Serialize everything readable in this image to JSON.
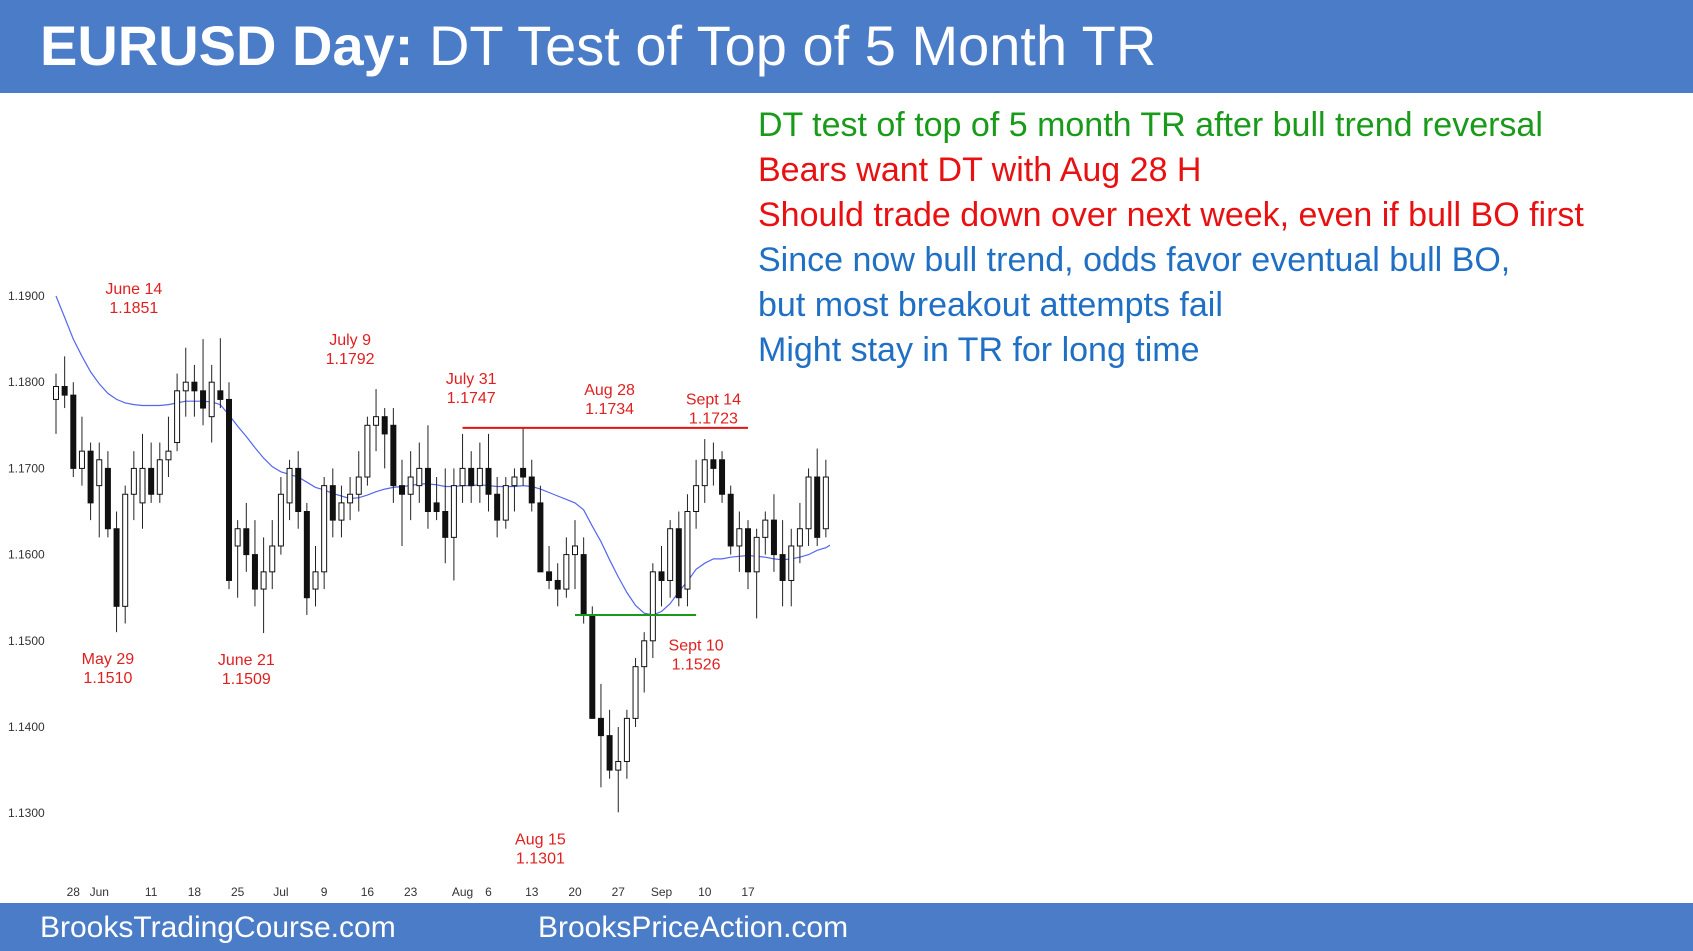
{
  "header": {
    "title_bold": "EURUSD Day:",
    "title_rest": "DT Test of Top of 5 Month TR"
  },
  "footer": {
    "left": "BrooksTradingCourse.com",
    "right": "BrooksPriceAction.com"
  },
  "notes": [
    {
      "text": "DT test of top of 5 month TR after bull trend reversal",
      "color": "#1a9a1a"
    },
    {
      "text": "Bears want DT with Aug 28 H",
      "color": "#e81010"
    },
    {
      "text": "Should trade down over next week, even if bull BO first",
      "color": "#e81010"
    },
    {
      "text": "Since now bull trend, odds favor eventual bull BO,",
      "color": "#1f6fc4"
    },
    {
      "text": "but most breakout attempts fail",
      "color": "#1f6fc4"
    },
    {
      "text": "Might stay in TR for long time",
      "color": "#1f6fc4"
    }
  ],
  "chart_data": {
    "type": "candlestick",
    "y_ticks": [
      "1.1300",
      "1.1400",
      "1.1500",
      "1.1600",
      "1.1700",
      "1.1800",
      "1.1900"
    ],
    "ylim": [
      1.125,
      1.195
    ],
    "x_ticks": [
      {
        "label": "28",
        "bar": 2
      },
      {
        "label": "Jun",
        "bar": 5
      },
      {
        "label": "11",
        "bar": 11
      },
      {
        "label": "18",
        "bar": 16
      },
      {
        "label": "25",
        "bar": 21
      },
      {
        "label": "Jul",
        "bar": 26
      },
      {
        "label": "9",
        "bar": 31
      },
      {
        "label": "16",
        "bar": 36
      },
      {
        "label": "23",
        "bar": 41
      },
      {
        "label": "Aug",
        "bar": 47
      },
      {
        "label": "6",
        "bar": 50
      },
      {
        "label": "13",
        "bar": 55
      },
      {
        "label": "20",
        "bar": 60
      },
      {
        "label": "27",
        "bar": 65
      },
      {
        "label": "Sep",
        "bar": 70
      },
      {
        "label": "10",
        "bar": 75
      },
      {
        "label": "17",
        "bar": 80
      }
    ],
    "annotations": [
      {
        "bar": 9,
        "price": 1.1851,
        "lines": [
          "June 14",
          "1.1851"
        ],
        "pos": "above"
      },
      {
        "bar": 6,
        "price": 1.151,
        "lines": [
          "May 29",
          "1.1510"
        ],
        "pos": "below"
      },
      {
        "bar": 22,
        "price": 1.1509,
        "lines": [
          "June 21",
          "1.1509"
        ],
        "pos": "below"
      },
      {
        "bar": 34,
        "price": 1.1792,
        "lines": [
          "July 9",
          "1.1792"
        ],
        "pos": "above"
      },
      {
        "bar": 48,
        "price": 1.1747,
        "lines": [
          "July 31",
          "1.1747"
        ],
        "pos": "above"
      },
      {
        "bar": 56,
        "price": 1.1301,
        "lines": [
          "Aug 15",
          "1.1301"
        ],
        "pos": "below"
      },
      {
        "bar": 64,
        "price": 1.1734,
        "lines": [
          "Aug 28",
          "1.1734"
        ],
        "pos": "above"
      },
      {
        "bar": 74,
        "price": 1.1526,
        "lines": [
          "Sept 10",
          "1.1526"
        ],
        "pos": "below"
      },
      {
        "bar": 76,
        "price": 1.1723,
        "lines": [
          "Sept 14",
          "1.1723"
        ],
        "pos": "above"
      }
    ],
    "lines": [
      {
        "from_bar": 47,
        "to_bar": 80,
        "price": 1.1747,
        "color": "#e81010"
      },
      {
        "from_bar": 60,
        "to_bar": 74,
        "price": 1.153,
        "color": "#1a9a1a"
      }
    ],
    "candles": [
      {
        "o": 1.178,
        "h": 1.181,
        "l": 1.174,
        "c": 1.1795
      },
      {
        "o": 1.1795,
        "h": 1.183,
        "l": 1.177,
        "c": 1.1785
      },
      {
        "o": 1.1785,
        "h": 1.18,
        "l": 1.169,
        "c": 1.17
      },
      {
        "o": 1.17,
        "h": 1.176,
        "l": 1.168,
        "c": 1.172
      },
      {
        "o": 1.172,
        "h": 1.173,
        "l": 1.164,
        "c": 1.166
      },
      {
        "o": 1.168,
        "h": 1.173,
        "l": 1.162,
        "c": 1.171
      },
      {
        "o": 1.17,
        "h": 1.172,
        "l": 1.162,
        "c": 1.163
      },
      {
        "o": 1.163,
        "h": 1.165,
        "l": 1.151,
        "c": 1.154
      },
      {
        "o": 1.154,
        "h": 1.168,
        "l": 1.152,
        "c": 1.167
      },
      {
        "o": 1.167,
        "h": 1.172,
        "l": 1.164,
        "c": 1.17
      },
      {
        "o": 1.166,
        "h": 1.174,
        "l": 1.163,
        "c": 1.17
      },
      {
        "o": 1.17,
        "h": 1.173,
        "l": 1.166,
        "c": 1.167
      },
      {
        "o": 1.167,
        "h": 1.173,
        "l": 1.166,
        "c": 1.171
      },
      {
        "o": 1.171,
        "h": 1.176,
        "l": 1.169,
        "c": 1.172
      },
      {
        "o": 1.173,
        "h": 1.181,
        "l": 1.172,
        "c": 1.179
      },
      {
        "o": 1.179,
        "h": 1.184,
        "l": 1.176,
        "c": 1.18
      },
      {
        "o": 1.18,
        "h": 1.182,
        "l": 1.176,
        "c": 1.179
      },
      {
        "o": 1.179,
        "h": 1.185,
        "l": 1.175,
        "c": 1.177
      },
      {
        "o": 1.176,
        "h": 1.182,
        "l": 1.173,
        "c": 1.18
      },
      {
        "o": 1.179,
        "h": 1.1851,
        "l": 1.177,
        "c": 1.178
      },
      {
        "o": 1.178,
        "h": 1.18,
        "l": 1.156,
        "c": 1.157
      },
      {
        "o": 1.161,
        "h": 1.164,
        "l": 1.155,
        "c": 1.163
      },
      {
        "o": 1.163,
        "h": 1.166,
        "l": 1.158,
        "c": 1.16
      },
      {
        "o": 1.16,
        "h": 1.164,
        "l": 1.154,
        "c": 1.156
      },
      {
        "o": 1.156,
        "h": 1.162,
        "l": 1.1509,
        "c": 1.158
      },
      {
        "o": 1.158,
        "h": 1.164,
        "l": 1.156,
        "c": 1.161
      },
      {
        "o": 1.161,
        "h": 1.169,
        "l": 1.16,
        "c": 1.167
      },
      {
        "o": 1.166,
        "h": 1.171,
        "l": 1.164,
        "c": 1.17
      },
      {
        "o": 1.17,
        "h": 1.172,
        "l": 1.163,
        "c": 1.165
      },
      {
        "o": 1.165,
        "h": 1.166,
        "l": 1.153,
        "c": 1.155
      },
      {
        "o": 1.156,
        "h": 1.161,
        "l": 1.154,
        "c": 1.158
      },
      {
        "o": 1.158,
        "h": 1.169,
        "l": 1.156,
        "c": 1.168
      },
      {
        "o": 1.168,
        "h": 1.17,
        "l": 1.162,
        "c": 1.164
      },
      {
        "o": 1.164,
        "h": 1.168,
        "l": 1.162,
        "c": 1.166
      },
      {
        "o": 1.166,
        "h": 1.169,
        "l": 1.164,
        "c": 1.167
      },
      {
        "o": 1.167,
        "h": 1.172,
        "l": 1.165,
        "c": 1.169
      },
      {
        "o": 1.169,
        "h": 1.176,
        "l": 1.168,
        "c": 1.175
      },
      {
        "o": 1.175,
        "h": 1.1792,
        "l": 1.172,
        "c": 1.176
      },
      {
        "o": 1.176,
        "h": 1.177,
        "l": 1.17,
        "c": 1.174
      },
      {
        "o": 1.175,
        "h": 1.177,
        "l": 1.166,
        "c": 1.168
      },
      {
        "o": 1.168,
        "h": 1.171,
        "l": 1.161,
        "c": 1.167
      },
      {
        "o": 1.167,
        "h": 1.172,
        "l": 1.164,
        "c": 1.169
      },
      {
        "o": 1.168,
        "h": 1.173,
        "l": 1.166,
        "c": 1.17
      },
      {
        "o": 1.17,
        "h": 1.175,
        "l": 1.163,
        "c": 1.165
      },
      {
        "o": 1.166,
        "h": 1.169,
        "l": 1.164,
        "c": 1.165
      },
      {
        "o": 1.165,
        "h": 1.17,
        "l": 1.159,
        "c": 1.162
      },
      {
        "o": 1.162,
        "h": 1.17,
        "l": 1.157,
        "c": 1.168
      },
      {
        "o": 1.168,
        "h": 1.174,
        "l": 1.166,
        "c": 1.17
      },
      {
        "o": 1.17,
        "h": 1.172,
        "l": 1.166,
        "c": 1.168
      },
      {
        "o": 1.168,
        "h": 1.173,
        "l": 1.166,
        "c": 1.17
      },
      {
        "o": 1.17,
        "h": 1.174,
        "l": 1.165,
        "c": 1.167
      },
      {
        "o": 1.167,
        "h": 1.169,
        "l": 1.162,
        "c": 1.164
      },
      {
        "o": 1.164,
        "h": 1.169,
        "l": 1.163,
        "c": 1.168
      },
      {
        "o": 1.168,
        "h": 1.17,
        "l": 1.165,
        "c": 1.169
      },
      {
        "o": 1.17,
        "h": 1.1747,
        "l": 1.168,
        "c": 1.169
      },
      {
        "o": 1.169,
        "h": 1.171,
        "l": 1.165,
        "c": 1.166
      },
      {
        "o": 1.166,
        "h": 1.168,
        "l": 1.158,
        "c": 1.158
      }
    ],
    "candles2": [
      {
        "o": 1.158,
        "h": 1.161,
        "l": 1.156,
        "c": 1.157
      },
      {
        "o": 1.157,
        "h": 1.159,
        "l": 1.154,
        "c": 1.156
      },
      {
        "o": 1.156,
        "h": 1.162,
        "l": 1.155,
        "c": 1.16
      },
      {
        "o": 1.16,
        "h": 1.164,
        "l": 1.156,
        "c": 1.161
      },
      {
        "o": 1.16,
        "h": 1.162,
        "l": 1.152,
        "c": 1.153
      },
      {
        "o": 1.153,
        "h": 1.154,
        "l": 1.141,
        "c": 1.141
      },
      {
        "o": 1.141,
        "h": 1.145,
        "l": 1.133,
        "c": 1.139
      },
      {
        "o": 1.139,
        "h": 1.142,
        "l": 1.134,
        "c": 1.135
      },
      {
        "o": 1.135,
        "h": 1.14,
        "l": 1.1301,
        "c": 1.136
      },
      {
        "o": 1.136,
        "h": 1.142,
        "l": 1.134,
        "c": 1.141
      },
      {
        "o": 1.141,
        "h": 1.148,
        "l": 1.14,
        "c": 1.147
      },
      {
        "o": 1.147,
        "h": 1.151,
        "l": 1.144,
        "c": 1.15
      },
      {
        "o": 1.15,
        "h": 1.159,
        "l": 1.148,
        "c": 1.158
      },
      {
        "o": 1.158,
        "h": 1.161,
        "l": 1.154,
        "c": 1.157
      },
      {
        "o": 1.157,
        "h": 1.164,
        "l": 1.155,
        "c": 1.163
      },
      {
        "o": 1.163,
        "h": 1.165,
        "l": 1.154,
        "c": 1.155
      },
      {
        "o": 1.156,
        "h": 1.167,
        "l": 1.154,
        "c": 1.165
      },
      {
        "o": 1.165,
        "h": 1.171,
        "l": 1.163,
        "c": 1.168
      },
      {
        "o": 1.168,
        "h": 1.1734,
        "l": 1.166,
        "c": 1.171
      },
      {
        "o": 1.171,
        "h": 1.173,
        "l": 1.168,
        "c": 1.17
      },
      {
        "o": 1.171,
        "h": 1.172,
        "l": 1.166,
        "c": 1.167
      },
      {
        "o": 1.167,
        "h": 1.168,
        "l": 1.16,
        "c": 1.161
      },
      {
        "o": 1.161,
        "h": 1.165,
        "l": 1.158,
        "c": 1.163
      },
      {
        "o": 1.163,
        "h": 1.164,
        "l": 1.156,
        "c": 1.158
      },
      {
        "o": 1.158,
        "h": 1.163,
        "l": 1.1526,
        "c": 1.162
      },
      {
        "o": 1.162,
        "h": 1.165,
        "l": 1.16,
        "c": 1.164
      },
      {
        "o": 1.164,
        "h": 1.167,
        "l": 1.158,
        "c": 1.16
      },
      {
        "o": 1.16,
        "h": 1.164,
        "l": 1.154,
        "c": 1.157
      },
      {
        "o": 1.157,
        "h": 1.163,
        "l": 1.154,
        "c": 1.161
      },
      {
        "o": 1.161,
        "h": 1.166,
        "l": 1.159,
        "c": 1.163
      },
      {
        "o": 1.163,
        "h": 1.17,
        "l": 1.161,
        "c": 1.169
      },
      {
        "o": 1.169,
        "h": 1.1723,
        "l": 1.161,
        "c": 1.162
      },
      {
        "o": 1.163,
        "h": 1.171,
        "l": 1.162,
        "c": 1.169
      },
      {
        "o": 1.169,
        "h": 1.172,
        "l": 1.168,
        "c": 1.169
      }
    ],
    "ma": [
      1.19,
      1.1875,
      1.185,
      1.183,
      1.1812,
      1.1798,
      1.1787,
      1.178,
      1.1776,
      1.1774,
      1.1773,
      1.1773,
      1.1773,
      1.1774,
      1.1776,
      1.1778,
      1.1778,
      1.1778,
      1.1777,
      1.1774,
      1.1762,
      1.1749,
      1.1737,
      1.1724,
      1.1712,
      1.1702,
      1.1696,
      1.1693,
      1.169,
      1.1684,
      1.1678,
      1.1675,
      1.1671,
      1.1668,
      1.1665,
      1.1666,
      1.1669,
      1.1673,
      1.1676,
      1.1678,
      1.1679,
      1.168,
      1.1682,
      1.1682,
      1.1681,
      1.1679,
      1.1679,
      1.168,
      1.168,
      1.1681,
      1.168,
      1.1679,
      1.1679,
      1.1679,
      1.168,
      1.1679,
      1.1676,
      1.1672,
      1.1668,
      1.1664,
      1.166,
      1.1652,
      1.1633,
      1.1615,
      1.1594,
      1.1574,
      1.1556,
      1.1541,
      1.1532,
      1.153,
      1.1534,
      1.1543,
      1.1557,
      1.1569,
      1.1583,
      1.159,
      1.1595,
      1.1595,
      1.1597,
      1.1598,
      1.1599,
      1.1598,
      1.1597,
      1.1595,
      1.1594,
      1.1595,
      1.1597,
      1.16,
      1.1605,
      1.1608,
      1.1614
    ]
  }
}
